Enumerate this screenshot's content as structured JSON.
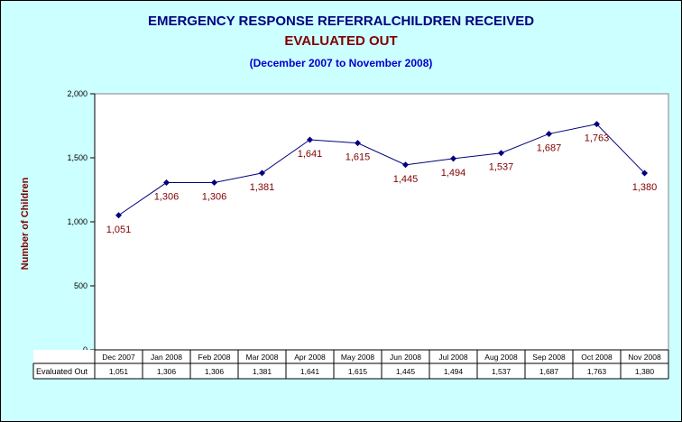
{
  "chart_data": {
    "type": "line",
    "title": "EMERGENCY RESPONSE REFERRALCHILDREN RECEIVED",
    "subtitle": "EVALUATED OUT",
    "period": "(December 2007 to November 2008)",
    "ylabel": "Number of Children",
    "ylim": [
      0,
      2000
    ],
    "yticks": [
      0,
      500,
      1000,
      1500,
      2000
    ],
    "ytick_labels": [
      "0",
      "500",
      "1,000",
      "1,500",
      "2,000"
    ],
    "categories": [
      "Dec 2007",
      "Jan 2008",
      "Feb 2008",
      "Mar 2008",
      "Apr 2008",
      "May 2008",
      "Jun 2008",
      "Jul 2008",
      "Aug 2008",
      "Sep 2008",
      "Oct 2008",
      "Nov 2008"
    ],
    "series": [
      {
        "name": "Evaluated Out",
        "values": [
          1051,
          1306,
          1306,
          1381,
          1641,
          1615,
          1445,
          1494,
          1537,
          1687,
          1763,
          1380
        ],
        "labels": [
          "1,051",
          "1,306",
          "1,306",
          "1,381",
          "1,641",
          "1,615",
          "1,445",
          "1,494",
          "1,537",
          "1,687",
          "1,763",
          "1,380"
        ],
        "color": "#000080"
      }
    ],
    "data_table": true,
    "grid": false,
    "background": "#ccffff",
    "plot_background": "#ffffff",
    "label_color": "#800000"
  }
}
